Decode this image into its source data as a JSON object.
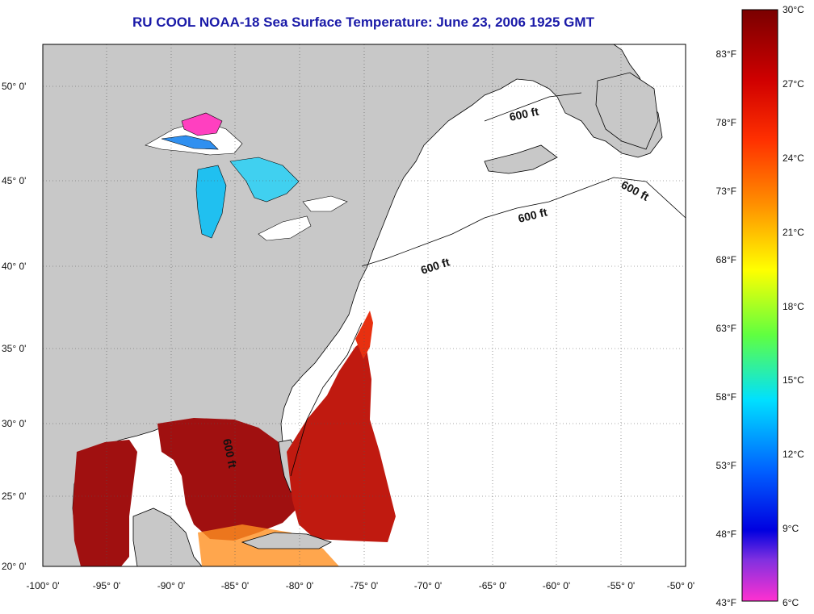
{
  "title": "RU COOL  NOAA-18  Sea Surface Temperature:  June 23, 2006 1925 GMT",
  "lat_labels": [
    "50° 0'",
    "45° 0'",
    "40° 0'",
    "35° 0'",
    "30° 0'",
    "25° 0'",
    "20° 0'"
  ],
  "lon_labels": [
    "-100° 0'",
    "-95° 0'",
    "-90° 0'",
    "-85° 0'",
    "-80° 0'",
    "-75° 0'",
    "-70° 0'",
    "-65° 0'",
    "-60° 0'",
    "-55° 0'",
    "-50° 0'"
  ],
  "isobath_label": "600 ft",
  "colorbar": {
    "celsius": [
      "30°C",
      "27°C",
      "24°C",
      "21°C",
      "18°C",
      "15°C",
      "12°C",
      "9°C",
      "6°C"
    ],
    "fahrenheit": [
      "83°F",
      "78°F",
      "73°F",
      "68°F",
      "63°F",
      "58°F",
      "53°F",
      "48°F",
      "43°F"
    ]
  },
  "colors": {
    "land": "#c8c8c8",
    "ocean_no_data": "#ffffff",
    "title": "#1a1aa8",
    "warm_sst": "#a01010",
    "hot_sst": "#e83010"
  }
}
